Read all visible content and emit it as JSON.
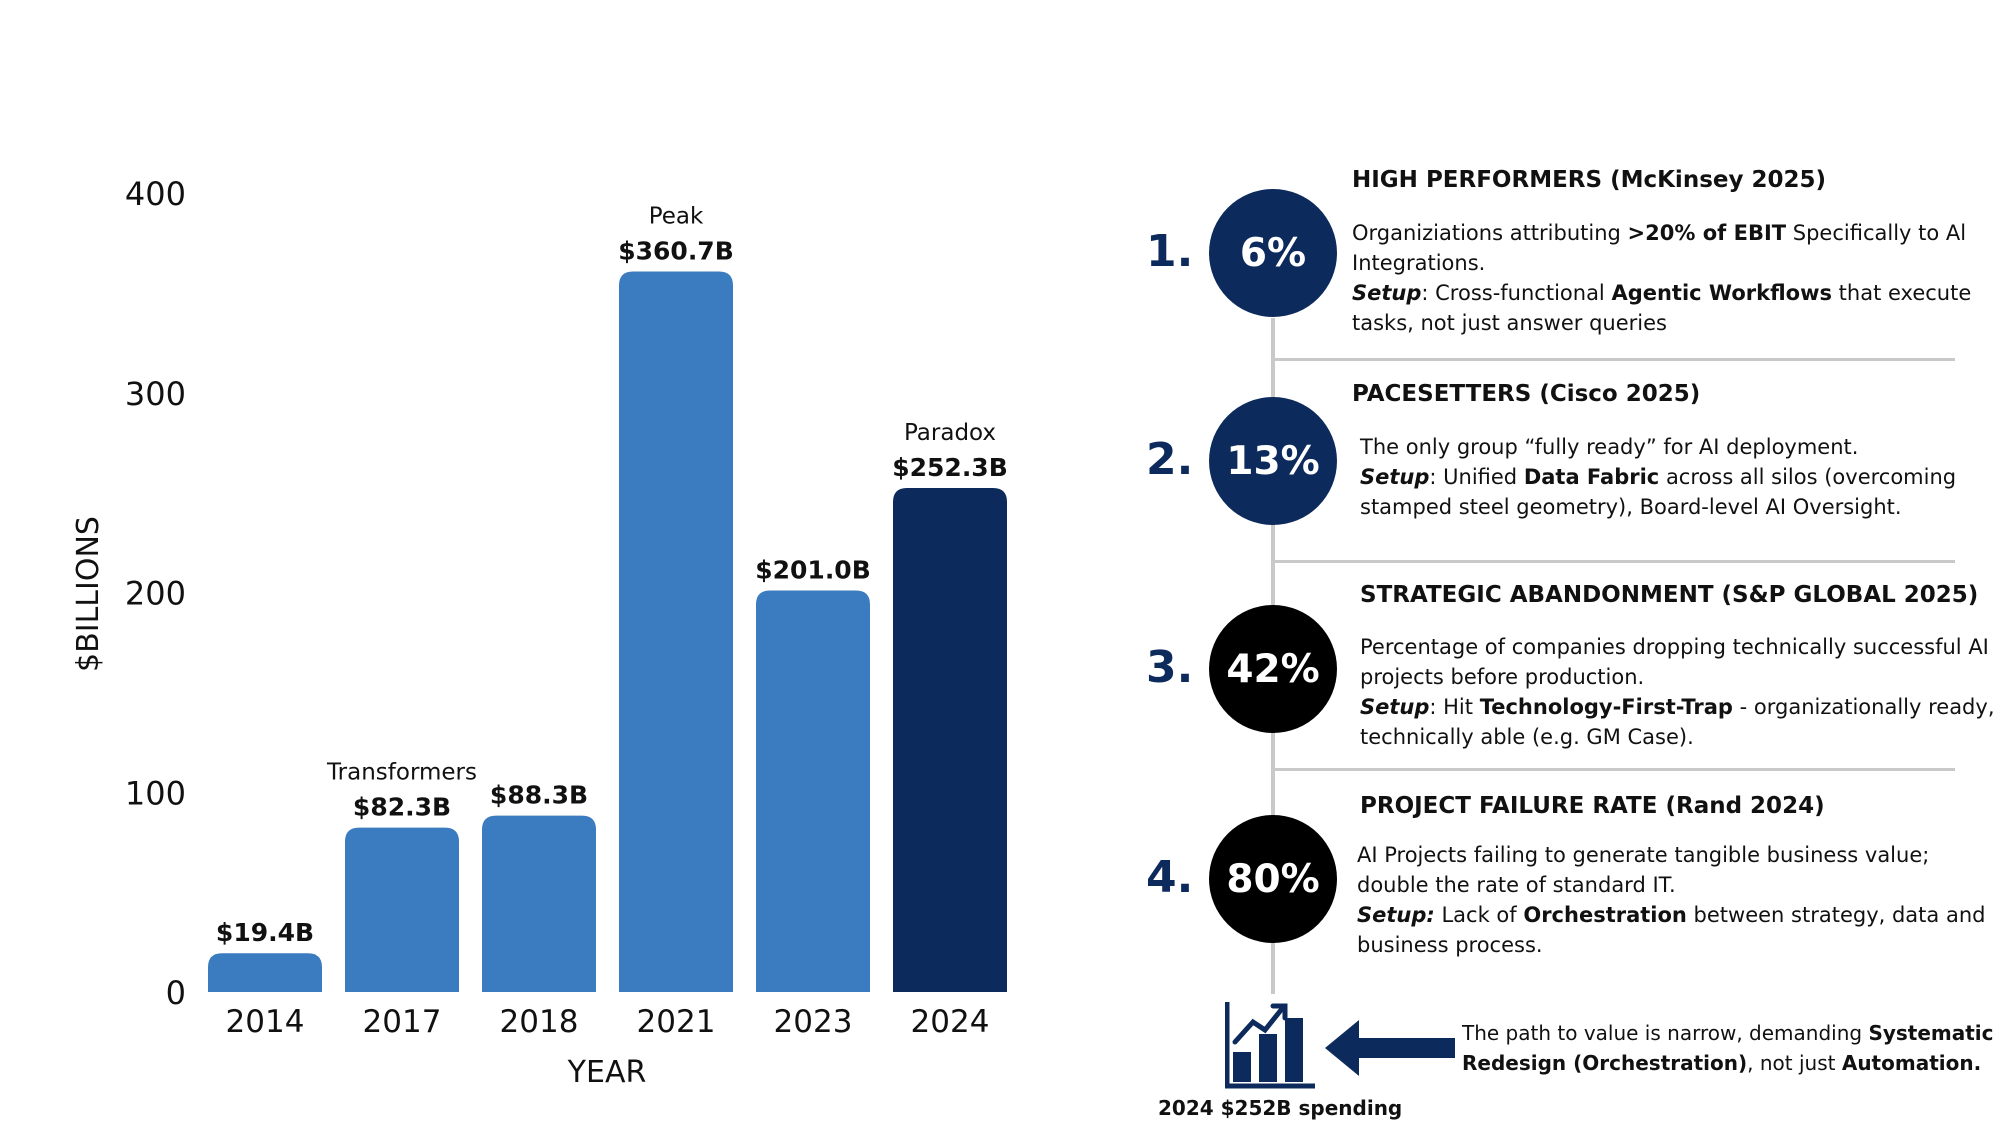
{
  "chart_data": {
    "type": "bar",
    "categories": [
      "2014",
      "2017",
      "2018",
      "2021",
      "2023",
      "2024"
    ],
    "values": [
      19.4,
      82.3,
      88.3,
      360.7,
      201.0,
      252.3
    ],
    "value_labels": [
      "$19.4B",
      "$82.3B",
      "$88.3B",
      "$360.7B",
      "$201.0B",
      "$252.3B"
    ],
    "annotations": [
      "",
      "Transformers",
      "",
      "Peak",
      "",
      "Paradox"
    ],
    "highlight_index": 5,
    "xlabel": "YEAR",
    "ylabel": "$BILLIONS",
    "yticks": [
      0,
      100,
      200,
      300,
      400
    ],
    "ylim": [
      0,
      400
    ],
    "grid": false,
    "colors": {
      "bar": "#3b7bbf",
      "highlight": "#0d2a5c"
    }
  },
  "stats": [
    {
      "number": "1.",
      "percent": "6%",
      "circle_color": "navy",
      "title": "HIGH PERFORMERS (McKinsey 2025)",
      "body_html": "Organiziations attributing <b>&gt;20% of EBIT</b> Specifically to Al Integrations.<br><i>Setup</i>: Cross-functional <b>Agentic Workflows</b> that execute tasks, not just answer queries"
    },
    {
      "number": "2.",
      "percent": "13%",
      "circle_color": "navy",
      "title": "PACESETTERS (Cisco 2025)",
      "body_html": "The only group “fully ready” for AI deployment.<br><i>Setup</i>: Unified <b>Data Fabric</b> across all silos (overcoming stamped steel geometry), Board-level AI Oversight."
    },
    {
      "number": "3.",
      "percent": "42%",
      "circle_color": "black",
      "title": "STRATEGIC ABANDONMENT (S&P GLOBAL 2025)",
      "body_html": "Percentage of companies dropping technically successful AI projects before production.<br><i>Setup</i>: Hit <b>Technology-First-Trap</b> - organizationally ready, technically able (e.g. GM Case)."
    },
    {
      "number": "4.",
      "percent": "80%",
      "circle_color": "black",
      "title": "PROJECT FAILURE RATE (Rand 2024)",
      "body_html": "AI Projects failing to generate tangible business value; double the rate of standard IT.<br><i>Setup:</i> Lack of <b>Orchestration</b> between strategy, data and business process."
    }
  ],
  "footer": {
    "icon": "bar-chart-growth-icon",
    "arrow": "left-arrow-icon",
    "caption": "2024 $252B spending",
    "text_html": "The path to value is narrow, demanding <b>Systematic Redesign (Orchestration)</b>, not just <b>Automation.</b>"
  }
}
